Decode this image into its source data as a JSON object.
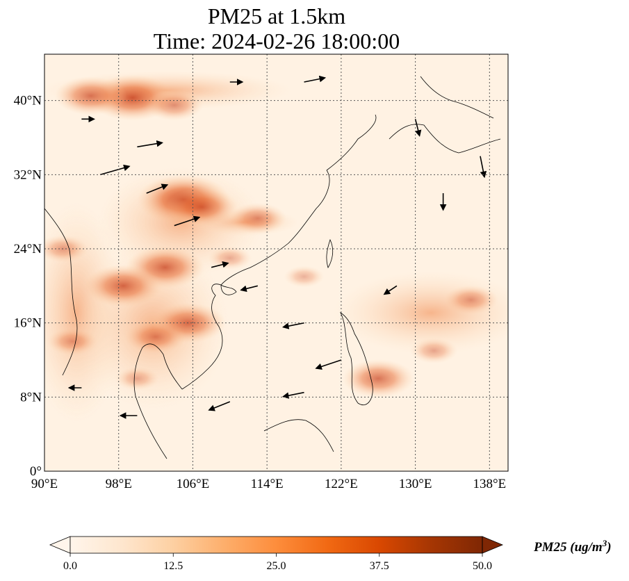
{
  "title": {
    "line1": "PM25 at 1.5km",
    "line2": "Time: 2024-02-26 18:00:00"
  },
  "map": {
    "lon_range": [
      90,
      140
    ],
    "lat_range": [
      0,
      45
    ],
    "lon_ticks": [
      {
        "value": 90,
        "label": "90°E"
      },
      {
        "value": 98,
        "label": "98°E"
      },
      {
        "value": 106,
        "label": "106°E"
      },
      {
        "value": 114,
        "label": "114°E"
      },
      {
        "value": 122,
        "label": "122°E"
      },
      {
        "value": 130,
        "label": "130°E"
      },
      {
        "value": 138,
        "label": "138°E"
      }
    ],
    "lat_ticks": [
      {
        "value": 0,
        "label": "0°"
      },
      {
        "value": 8,
        "label": "8°N"
      },
      {
        "value": 16,
        "label": "16°N"
      },
      {
        "value": 24,
        "label": "24°N"
      },
      {
        "value": 32,
        "label": "32°N"
      },
      {
        "value": 40,
        "label": "40°N"
      }
    ],
    "gridlines": true,
    "field": "PM25",
    "hotspots": [
      {
        "lon": 99.5,
        "lat": 40.3,
        "value": 38
      },
      {
        "lon": 95,
        "lat": 40.5,
        "value": 30
      },
      {
        "lon": 104,
        "lat": 39.5,
        "value": 22
      },
      {
        "lon": 105,
        "lat": 29.3,
        "value": 42
      },
      {
        "lon": 107,
        "lat": 28.5,
        "value": 30
      },
      {
        "lon": 113,
        "lat": 27.3,
        "value": 22
      },
      {
        "lon": 103,
        "lat": 22,
        "value": 34
      },
      {
        "lon": 98.5,
        "lat": 20,
        "value": 34
      },
      {
        "lon": 105.5,
        "lat": 16,
        "value": 32
      },
      {
        "lon": 102,
        "lat": 14.5,
        "value": 24
      },
      {
        "lon": 126,
        "lat": 10,
        "value": 30
      },
      {
        "lon": 136,
        "lat": 18.5,
        "value": 20
      },
      {
        "lon": 132,
        "lat": 13,
        "value": 16
      },
      {
        "lon": 92,
        "lat": 24,
        "value": 18
      },
      {
        "lon": 93,
        "lat": 14,
        "value": 18
      },
      {
        "lon": 110,
        "lat": 23,
        "value": 14
      },
      {
        "lon": 118,
        "lat": 21,
        "value": 12
      },
      {
        "lon": 100,
        "lat": 10,
        "value": 14
      }
    ],
    "wind_vectors": [
      {
        "lon": 100,
        "lat": 35,
        "u": 6,
        "v": 1
      },
      {
        "lon": 96,
        "lat": 32,
        "u": 7,
        "v": 2
      },
      {
        "lon": 101,
        "lat": 30,
        "u": 5,
        "v": 2
      },
      {
        "lon": 104,
        "lat": 26.5,
        "u": 6,
        "v": 2
      },
      {
        "lon": 108,
        "lat": 22,
        "u": 4,
        "v": 1
      },
      {
        "lon": 113,
        "lat": 20,
        "u": -4,
        "v": -1
      },
      {
        "lon": 118,
        "lat": 16,
        "u": -5,
        "v": -1
      },
      {
        "lon": 122,
        "lat": 12,
        "u": -6,
        "v": -2
      },
      {
        "lon": 118,
        "lat": 8.5,
        "u": -5,
        "v": -1
      },
      {
        "lon": 110,
        "lat": 7.5,
        "u": -5,
        "v": -2
      },
      {
        "lon": 100,
        "lat": 6,
        "u": -4,
        "v": 0
      },
      {
        "lon": 94,
        "lat": 9,
        "u": -3,
        "v": 0
      },
      {
        "lon": 128,
        "lat": 20,
        "u": -3,
        "v": -2
      },
      {
        "lon": 133,
        "lat": 30,
        "u": 0,
        "v": -4
      },
      {
        "lon": 137,
        "lat": 34,
        "u": 1,
        "v": -5
      },
      {
        "lon": 130,
        "lat": 38,
        "u": 1,
        "v": -4
      },
      {
        "lon": 118,
        "lat": 42,
        "u": 5,
        "v": 1
      },
      {
        "lon": 110,
        "lat": 42,
        "u": 3,
        "v": 0
      },
      {
        "lon": 94,
        "lat": 38,
        "u": 3,
        "v": 0
      }
    ]
  },
  "colorbar": {
    "label": "PM25 (ug/m",
    "label_sup": "3",
    "label_end": ")",
    "ticks": [
      "0.0",
      "12.5",
      "25.0",
      "37.5",
      "50.0"
    ],
    "range": [
      0,
      50
    ],
    "colors": [
      "#fff5eb",
      "#fee6ce",
      "#fdd0a2",
      "#fdae6b",
      "#fd8d3c",
      "#f16913",
      "#d94801",
      "#a63603",
      "#7f2704"
    ],
    "extend": "both"
  }
}
